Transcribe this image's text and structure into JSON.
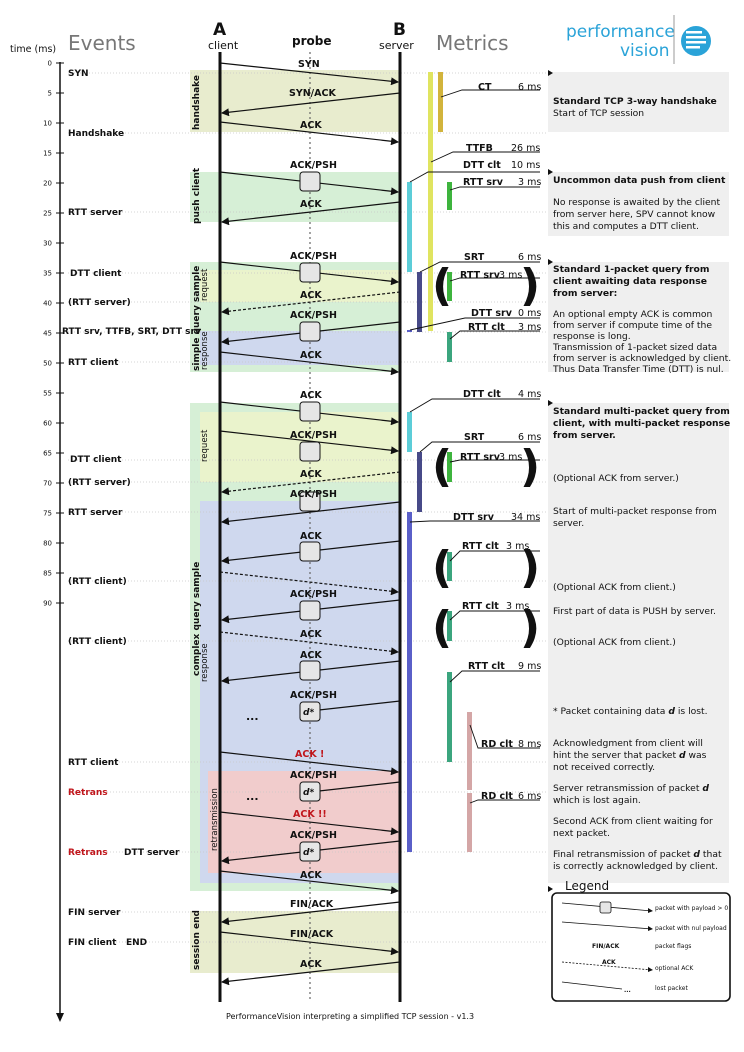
{
  "header": {
    "time_axis_label": "time (ms)",
    "events_title": "Events",
    "client_letter": "A",
    "client_label": "client",
    "probe_label": "probe",
    "server_letter": "B",
    "server_label": "server",
    "metrics_title": "Metrics",
    "logo_line1": "performance",
    "logo_line2": "vision"
  },
  "time_ticks": [
    "0",
    "5",
    "10",
    "15",
    "20",
    "25",
    "30",
    "35",
    "40",
    "45",
    "50",
    "55",
    "60",
    "65",
    "70",
    "75",
    "80",
    "85",
    "90"
  ],
  "events": {
    "syn": "SYN",
    "handshake": "Handshake",
    "rtt_server_1": "RTT server",
    "dtt_client_1": "DTT client",
    "rtt_server_opt_1": "(RTT server)",
    "multi": "RTT srv, TTFB, SRT, DTT srv",
    "rtt_client_1": "RTT client",
    "dtt_client_2": "DTT client",
    "rtt_server_opt_2": "(RTT server)",
    "rtt_server_2": "RTT server",
    "rtt_client_opt_1": "(RTT client)",
    "rtt_client_opt_2": "(RTT client)",
    "rtt_client_2": "RTT client",
    "retrans_1": "Retrans",
    "retrans_2": "Retrans",
    "dtt_server": "DTT server",
    "fin_server": "FIN server",
    "fin_client": "FIN client",
    "end": "END"
  },
  "phases": {
    "handshake": "handshake",
    "push_client": "push client",
    "simple_query": "simple query sample",
    "request": "request",
    "response": "response",
    "complex_query": "complex query sample",
    "retransmission": "retransmission",
    "session_end": "session end"
  },
  "flags": {
    "syn": "SYN",
    "synack": "SYN/ACK",
    "ack": "ACK",
    "ackpsh": "ACK/PSH",
    "ack_red1": "ACK !",
    "ack_red2": "ACK !!",
    "finack": "FIN/ACK",
    "d": "d*",
    "dots": "..."
  },
  "metrics": {
    "ct": {
      "label": "CT",
      "value": "6 ms"
    },
    "ttfb": {
      "label": "TTFB",
      "value": "26 ms"
    },
    "dtt_clt_1": {
      "label": "DTT clt",
      "value": "10 ms"
    },
    "rtt_srv_1": {
      "label": "RTT srv",
      "value": "3 ms"
    },
    "srt_1": {
      "label": "SRT",
      "value": "6 ms"
    },
    "rtt_srv_2": {
      "label": "RTT srv",
      "value": "3 ms"
    },
    "dtt_srv_1": {
      "label": "DTT srv",
      "value": "0 ms"
    },
    "rtt_clt_1": {
      "label": "RTT clt",
      "value": "3 ms"
    },
    "dtt_clt_2": {
      "label": "DTT clt",
      "value": "4 ms"
    },
    "srt_2": {
      "label": "SRT",
      "value": "6 ms"
    },
    "rtt_srv_3": {
      "label": "RTT srv",
      "value": "3 ms"
    },
    "dtt_srv_2": {
      "label": "DTT srv",
      "value": "34 ms"
    },
    "rtt_clt_2": {
      "label": "RTT clt",
      "value": "3 ms"
    },
    "rtt_clt_3": {
      "label": "RTT clt",
      "value": "3 ms"
    },
    "rtt_clt_4": {
      "label": "RTT clt",
      "value": "9 ms"
    },
    "rd_clt_1": {
      "label": "RD clt",
      "value": "8 ms"
    },
    "rd_clt_2": {
      "label": "RD clt",
      "value": "6 ms"
    }
  },
  "notes": {
    "n1_title": "Standard TCP 3-way handshake",
    "n1_l1": "Start of TCP session",
    "n2_title": "Uncommon data push from client",
    "n2_l1": "No response is awaited by the client",
    "n2_l2": "from server here, SPV cannot know",
    "n2_l3": "this and computes a DTT client.",
    "n3_t1": "Standard 1-packet query from",
    "n3_t2": "client awaiting data response",
    "n3_t3": "from server:",
    "n3_l1": "An optional empty ACK is common",
    "n3_l2": "from server if compute time of the",
    "n3_l3": "response is long.",
    "n3_l4": "Transmission of 1-packet sized data",
    "n3_l5": "from server is acknowledged by client.",
    "n3_l6": "Thus Data Transfer Time (DTT) is nul.",
    "n4_t1": "Standard multi-packet query from",
    "n4_t2": "client, with multi-packet response",
    "n4_t3": "from server.",
    "n4_opt_srv": "(Optional ACK from server.)",
    "n4_start1": "Start of multi-packet response from",
    "n4_start2": "server.",
    "n4_opt_clt1": "(Optional ACK from client.)",
    "n4_push": "First part of data is PUSH by server.",
    "n4_opt_clt2": "(Optional ACK from client.)",
    "n4_lost_pre": "* Packet containing data ",
    "n4_lost_d": "d",
    "n4_lost_post": " is lost.",
    "n4_ack1": "Acknowledgment from client will",
    "n4_ack2a": "hint the server that packet ",
    "n4_ack2d": "d",
    "n4_ack2b": " was",
    "n4_ack3": "not received correctly.",
    "n4_re1a": "Server retransmission of packet ",
    "n4_re1d": "d",
    "n4_re2": "which is lost again.",
    "n4_sec1": "Second ACK from client waiting for",
    "n4_sec2": "next packet.",
    "n4_fin1a": "Final retransmission of packet ",
    "n4_fin1d": "d",
    "n4_fin1b": " that",
    "n4_fin2": "is correctly acknowledged by client."
  },
  "legend": {
    "title": "Legend",
    "payload": "packet with payload > 0",
    "nul": "packet with nul payload",
    "flags_example": "FIN/ACK",
    "flags": "packet flags",
    "optional_example": "ACK",
    "optional": "optional ACK",
    "lost": "lost packet"
  },
  "footer": "PerformanceVision interpreting a simplified TCP session - v1.3",
  "colors": {
    "handshake_bg": "#e8ecce",
    "push_bg": "#d6efd6",
    "request_bg": "#eaf3cc",
    "response_bg": "#cfd8ee",
    "retrans_bg": "#f1cccc",
    "ttfb": "#e0e460",
    "ct": "#d2b43c",
    "dtt_clt": "#5ccdd8",
    "rtt_srv": "#3eb43e",
    "srt": "#474a88",
    "dtt_srv": "#5a5fc8",
    "rtt_clt": "#3ba57e",
    "rd_clt": "#d4a6a6",
    "logo": "#2aa3d8"
  }
}
